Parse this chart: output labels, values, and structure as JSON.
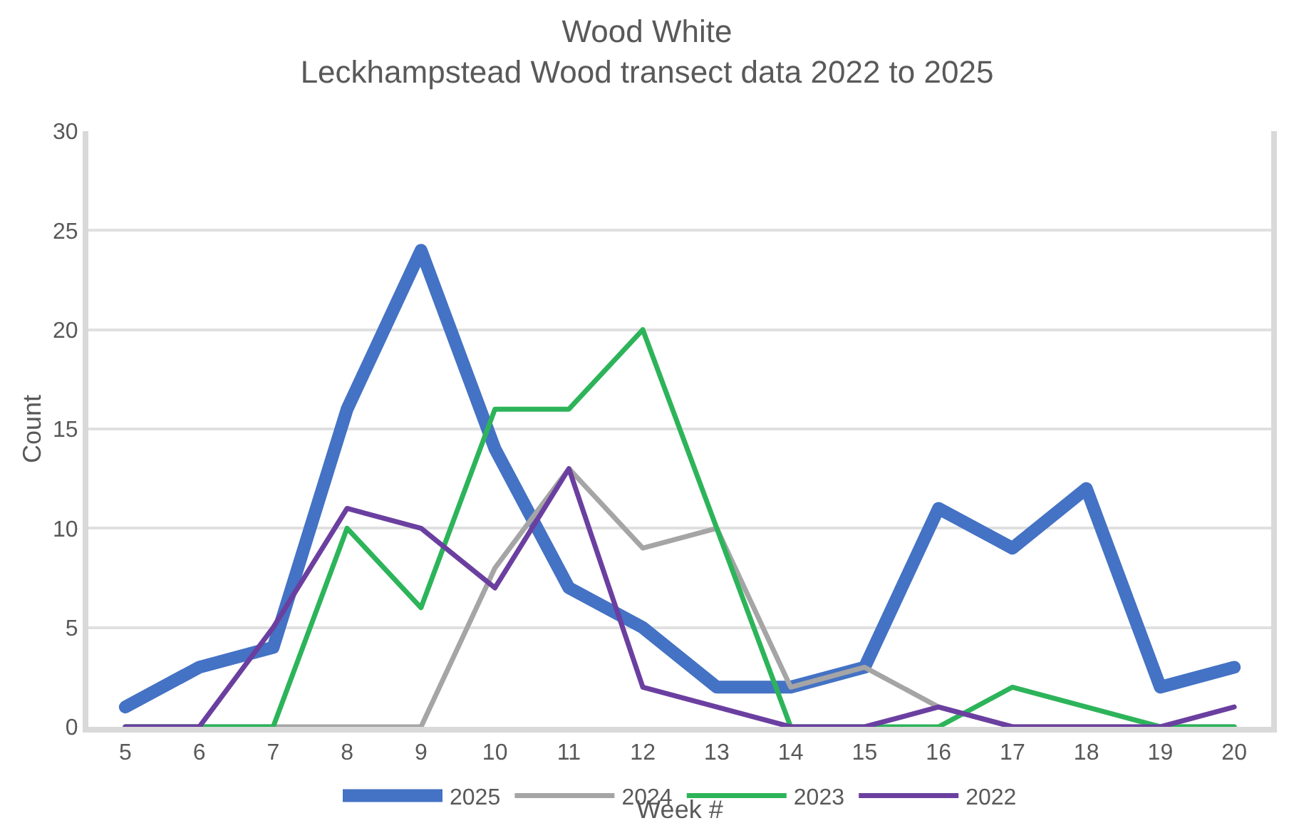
{
  "chart_data": {
    "type": "line",
    "title": "Wood White",
    "subtitle": "Leckhampstead Wood transect data 2022 to 2025",
    "xlabel": "Week #",
    "ylabel": "Count",
    "categories": [
      "5",
      "6",
      "7",
      "8",
      "9",
      "10",
      "11",
      "12",
      "13",
      "14",
      "15",
      "16",
      "17",
      "18",
      "19",
      "20"
    ],
    "ylim": [
      0,
      30
    ],
    "yticks": [
      0,
      5,
      10,
      15,
      20,
      25,
      30
    ],
    "grid": "y",
    "legend": "bottom",
    "marker": "none",
    "line_style": "solid",
    "series": [
      {
        "name": "2025",
        "color": "#4472c4",
        "values": [
          1,
          3,
          4,
          16,
          24,
          14,
          7,
          5,
          2,
          2,
          3,
          11,
          9,
          12,
          2,
          3
        ]
      },
      {
        "name": "2024",
        "color": "#a5a5a5",
        "values": [
          0,
          0,
          0,
          0,
          0,
          8,
          13,
          9,
          10,
          2,
          3,
          1,
          0,
          0,
          0,
          0
        ]
      },
      {
        "name": "2023",
        "color": "#2db45a",
        "values": [
          0,
          0,
          0,
          10,
          6,
          16,
          16,
          20,
          10,
          0,
          0,
          0,
          2,
          1,
          0,
          0
        ]
      },
      {
        "name": "2022",
        "color": "#6b3fa0",
        "values": [
          0,
          0,
          5,
          11,
          10,
          7,
          13,
          2,
          1,
          0,
          0,
          1,
          0,
          0,
          0,
          1
        ]
      }
    ]
  }
}
